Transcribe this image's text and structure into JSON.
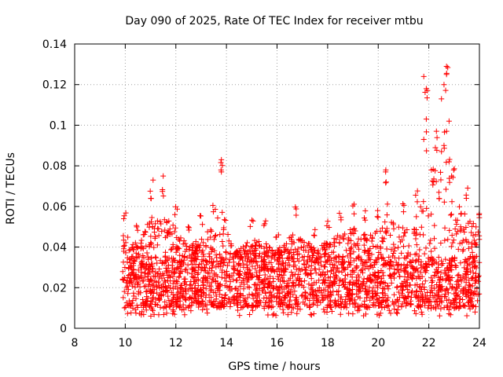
{
  "chart_data": {
    "type": "scatter",
    "title": "Day 090 of 2025, Rate Of TEC Index for receiver mtbu",
    "xlabel": "GPS time / hours",
    "ylabel": "ROTI / TECUs",
    "xlim": [
      8,
      24
    ],
    "ylim": [
      0,
      0.14
    ],
    "xticks": [
      8,
      10,
      12,
      14,
      16,
      18,
      20,
      22,
      24
    ],
    "xtick_labels": [
      "8",
      "10",
      "12",
      "14",
      "16",
      "18",
      "20",
      "22",
      "24"
    ],
    "yticks": [
      0,
      0.02,
      0.04,
      0.06,
      0.08,
      0.1,
      0.12,
      0.14
    ],
    "ytick_labels": [
      "0",
      "0.02",
      "0.04",
      "0.06",
      "0.08",
      "0.1",
      "0.12",
      "0.14"
    ],
    "grid": true,
    "marker": "plus",
    "color": "#ff0000",
    "series": [
      {
        "name": "ROTI",
        "x_range": [
          9.9,
          24.0
        ],
        "typical_range": [
          0.01,
          0.035
        ],
        "envelope": [
          {
            "x": 10.0,
            "ymax": 0.058
          },
          {
            "x": 10.5,
            "ymax": 0.052
          },
          {
            "x": 11.0,
            "ymax": 0.07
          },
          {
            "x": 11.5,
            "ymax": 0.072
          },
          {
            "x": 12.0,
            "ymax": 0.062
          },
          {
            "x": 12.5,
            "ymax": 0.05
          },
          {
            "x": 13.0,
            "ymax": 0.056
          },
          {
            "x": 13.5,
            "ymax": 0.063
          },
          {
            "x": 13.8,
            "ymax": 0.082
          },
          {
            "x": 14.2,
            "ymax": 0.045
          },
          {
            "x": 15.0,
            "ymax": 0.055
          },
          {
            "x": 15.5,
            "ymax": 0.053
          },
          {
            "x": 16.0,
            "ymax": 0.048
          },
          {
            "x": 16.7,
            "ymax": 0.06
          },
          {
            "x": 17.5,
            "ymax": 0.05
          },
          {
            "x": 18.0,
            "ymax": 0.054
          },
          {
            "x": 18.5,
            "ymax": 0.058
          },
          {
            "x": 19.0,
            "ymax": 0.062
          },
          {
            "x": 19.5,
            "ymax": 0.058
          },
          {
            "x": 20.0,
            "ymax": 0.06
          },
          {
            "x": 20.3,
            "ymax": 0.078
          },
          {
            "x": 21.0,
            "ymax": 0.062
          },
          {
            "x": 21.5,
            "ymax": 0.068
          },
          {
            "x": 21.9,
            "ymax": 0.123
          },
          {
            "x": 22.3,
            "ymax": 0.095
          },
          {
            "x": 22.7,
            "ymax": 0.13
          },
          {
            "x": 23.0,
            "ymax": 0.08
          },
          {
            "x": 23.5,
            "ymax": 0.07
          },
          {
            "x": 24.0,
            "ymax": 0.06
          }
        ],
        "outliers": [
          {
            "x": 13.8,
            "y": 0.083
          },
          {
            "x": 13.8,
            "y": 0.077
          },
          {
            "x": 20.3,
            "y": 0.078
          },
          {
            "x": 21.8,
            "y": 0.124
          },
          {
            "x": 21.9,
            "y": 0.118
          },
          {
            "x": 21.9,
            "y": 0.103
          },
          {
            "x": 22.7,
            "y": 0.129
          },
          {
            "x": 22.7,
            "y": 0.125
          },
          {
            "x": 22.6,
            "y": 0.12
          },
          {
            "x": 22.5,
            "y": 0.113
          },
          {
            "x": 22.8,
            "y": 0.102
          },
          {
            "x": 22.7,
            "y": 0.097
          },
          {
            "x": 22.6,
            "y": 0.09
          },
          {
            "x": 22.3,
            "y": 0.097
          },
          {
            "x": 22.5,
            "y": 0.087
          },
          {
            "x": 22.8,
            "y": 0.082
          },
          {
            "x": 21.8,
            "y": 0.093
          },
          {
            "x": 22.1,
            "y": 0.078
          },
          {
            "x": 22.9,
            "y": 0.075
          },
          {
            "x": 11.5,
            "y": 0.075
          },
          {
            "x": 11.1,
            "y": 0.073
          }
        ]
      }
    ]
  }
}
